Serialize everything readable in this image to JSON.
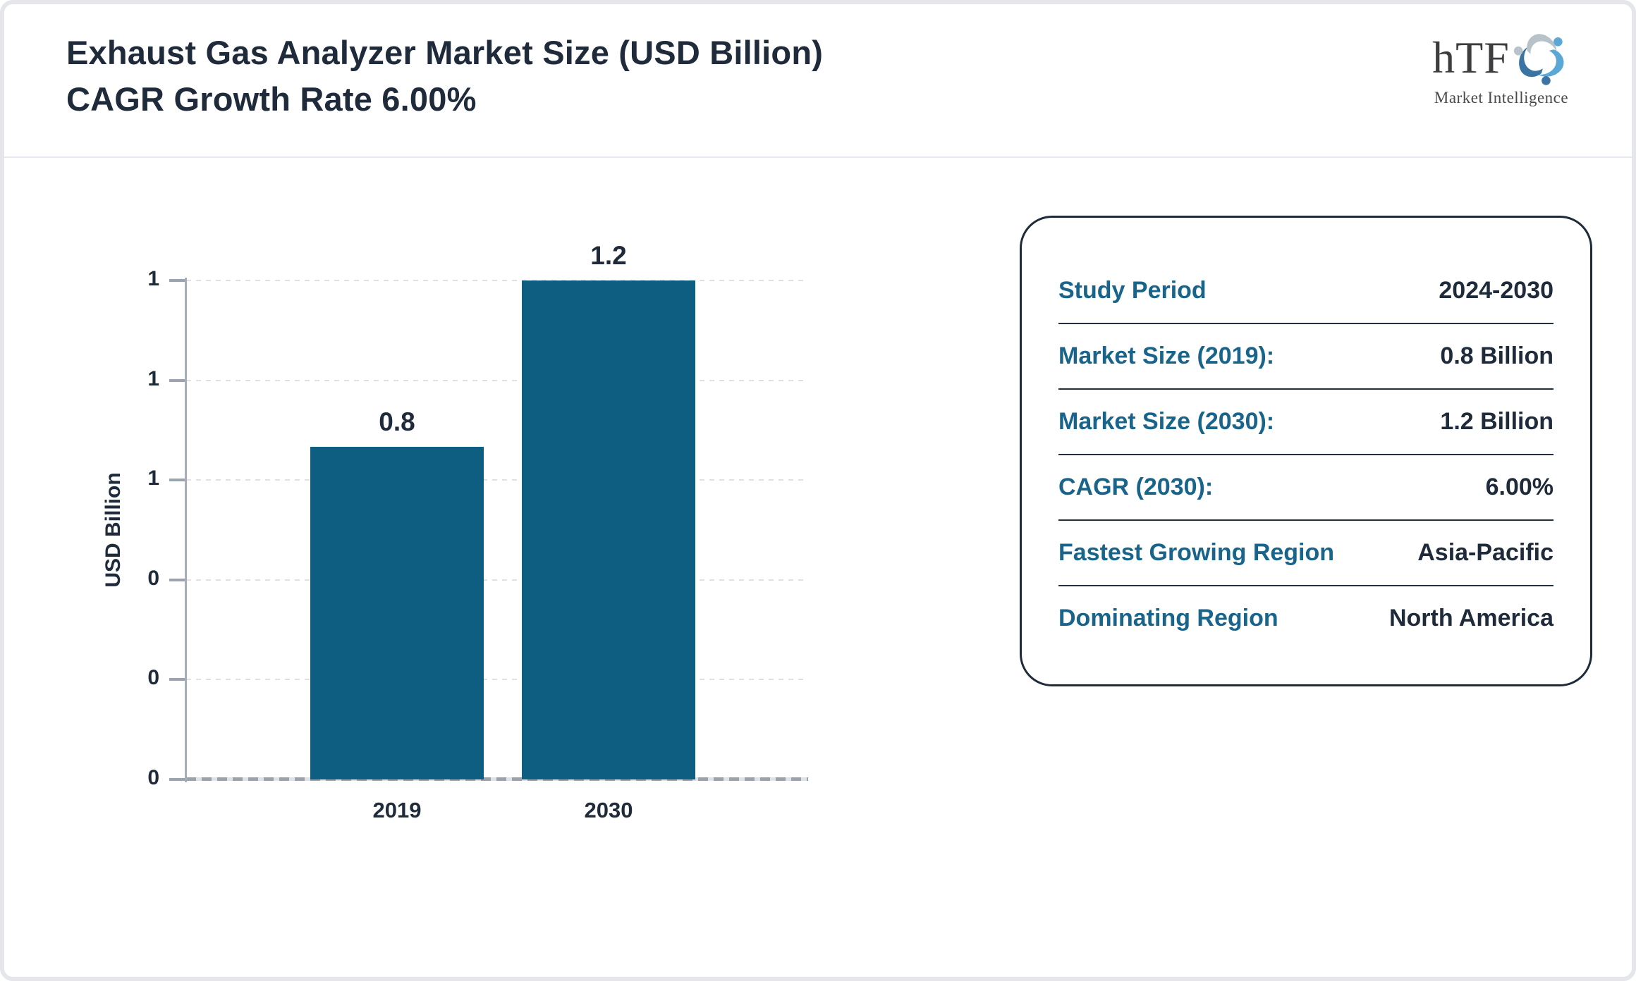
{
  "header": {
    "title_line1": "Exhaust Gas Analyzer Market Size (USD Billion)",
    "title_line2": "CAGR Growth Rate 6.00%",
    "logo": {
      "text": "hTF",
      "subtext": "Market Intelligence"
    }
  },
  "chart_data": {
    "type": "bar",
    "title": "Exhaust Gas Analyzer Market Size (USD Billion) CAGR Growth Rate 6.00%",
    "categories": [
      "2019",
      "2030"
    ],
    "values": [
      0.8,
      1.2
    ],
    "value_labels": [
      "0.8",
      "1.2"
    ],
    "xlabel": "",
    "ylabel": "USD Billion",
    "ylim": [
      0,
      1.2
    ],
    "y_tick_count": 6,
    "y_tick_labels_top_to_bottom": [
      "1",
      "1",
      "1",
      "0",
      "0",
      "0"
    ],
    "grid": "horizontal-dotted",
    "legend": "none",
    "bar_color": "#0e5e82"
  },
  "info_card": {
    "rows": [
      {
        "label": "Study Period",
        "value": "2024-2030"
      },
      {
        "label": "Market Size (2019):",
        "value": "0.8 Billion"
      },
      {
        "label": "Market Size (2030):",
        "value": "1.2 Billion"
      },
      {
        "label": "CAGR (2030):",
        "value": "6.00%"
      },
      {
        "label": "Fastest Growing Region",
        "value": "Asia-Pacific"
      },
      {
        "label": "Dominating Region",
        "value": "North America"
      }
    ]
  },
  "colors": {
    "bar": "#0e5e82",
    "title_navy": "#1f2b3b",
    "card_label_teal": "#19648a",
    "card_border": "#1f2a3a",
    "page_border": "#e4e6ea",
    "logo_swirl": [
      "#5ba7d6",
      "#3b74a3",
      "#b7c2ca"
    ]
  }
}
